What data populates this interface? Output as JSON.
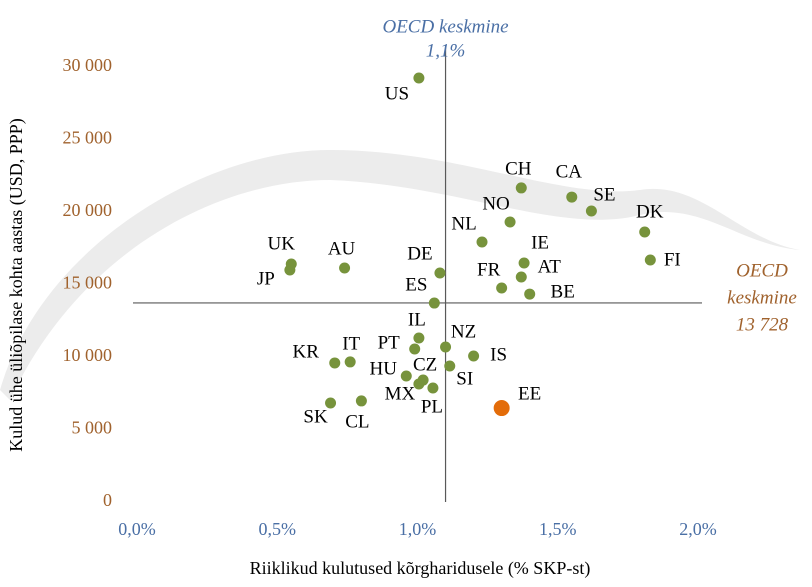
{
  "chart_data": {
    "type": "scatter",
    "x_label": "Riiklikud kulutused kõrgharidusele (% SKP-st)",
    "y_label": "Kulud ühe üliõpilase kohta aastas (USD, PPP)",
    "xlim": [
      0,
      2.0
    ],
    "ylim": [
      0,
      30000
    ],
    "xticks": [
      {
        "value": 0,
        "label": "0,0%"
      },
      {
        "value": 0.5,
        "label": "0,5%"
      },
      {
        "value": 1.0,
        "label": "1,0%"
      },
      {
        "value": 1.5,
        "label": "1,5%"
      },
      {
        "value": 2.0,
        "label": "2,0%"
      }
    ],
    "yticks": [
      0,
      {
        "value": 5000,
        "label": "5 000"
      },
      {
        "value": 10000,
        "label": "10 000"
      },
      {
        "value": 15000,
        "label": "15 000"
      },
      {
        "value": 20000,
        "label": "20 000"
      },
      {
        "value": 25000,
        "label": "25 000"
      },
      {
        "value": 30000,
        "label": "30 000"
      }
    ],
    "series": [
      {
        "color": "#77933c",
        "labels": [
          "US",
          "CH",
          "CA",
          "SE",
          "DK",
          "NO",
          "NL",
          "IE",
          "AT",
          "FI",
          "FR",
          "BE",
          "UK",
          "JP",
          "AU",
          "DE",
          "ES",
          "IL",
          "NZ",
          "PT",
          "IS",
          "KR",
          "IT",
          "CZ",
          "HU",
          "MX",
          "PL",
          "SI",
          "SK",
          "CL"
        ],
        "x": [
          1.005,
          1.37,
          1.55,
          1.62,
          1.81,
          1.33,
          1.23,
          1.38,
          1.37,
          1.83,
          1.3,
          1.4,
          0.55,
          0.545,
          0.74,
          1.08,
          1.06,
          1.005,
          1.1,
          0.99,
          1.2,
          0.705,
          0.76,
          1.02,
          0.96,
          1.005,
          1.055,
          1.115,
          0.69,
          0.8
        ],
        "values": [
          29240,
          21660,
          21030,
          20070,
          18620,
          19310,
          17930,
          16480,
          15520,
          16690,
          14760,
          14340,
          16410,
          16000,
          16140,
          15790,
          13720,
          11310,
          10690,
          10550,
          10070,
          9590,
          9660,
          8410,
          8690,
          8140,
          7860,
          9380,
          6830,
          6970
        ]
      },
      {
        "color": "#e36c09",
        "labels": [
          "EE"
        ],
        "x": [
          1.3
        ],
        "values": [
          6480
        ]
      }
    ],
    "reference_lines": {
      "x": {
        "value": 1.1,
        "label": [
          "OECD keskmine",
          "1,1%"
        ],
        "color": "#4a6fa5"
      },
      "y": {
        "value": 13728,
        "label": [
          "OECD",
          "keskmine",
          "13 728"
        ],
        "color": "#a0622d"
      }
    },
    "ytick_color": "#a0622d",
    "xtick_color": "#4a6fa5"
  }
}
